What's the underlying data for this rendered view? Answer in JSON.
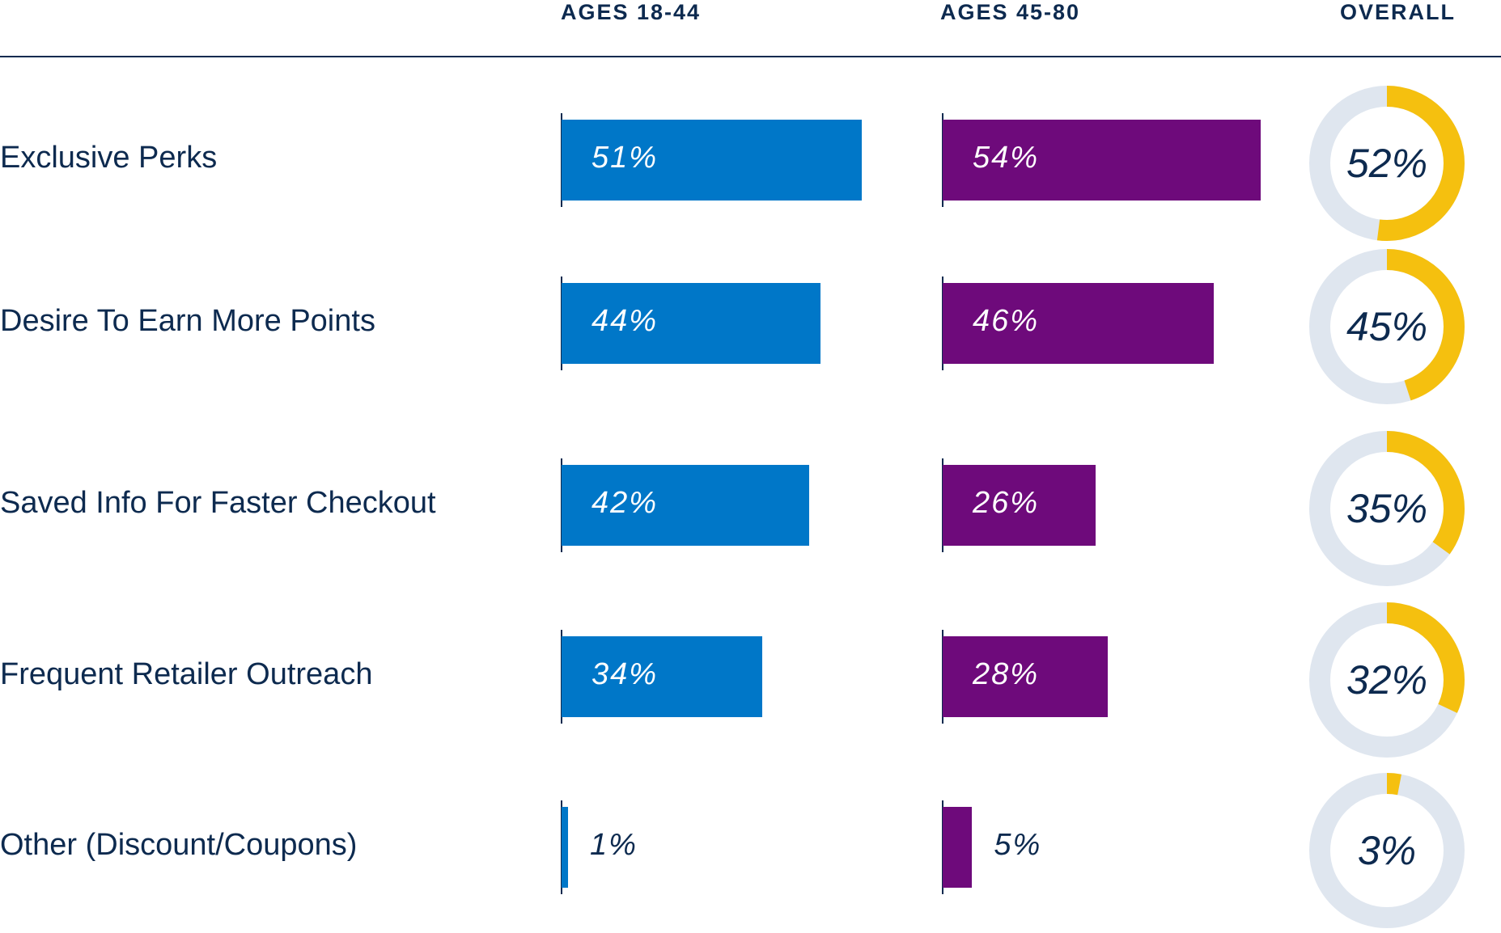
{
  "chart_data": {
    "type": "bar",
    "headers": {
      "young": "AGES 18-44",
      "old": "AGES 45-80",
      "overall": "OVERALL"
    },
    "categories": [
      "Exclusive Perks",
      "Desire To Earn More Points",
      "Saved Info For Faster Checkout",
      "Frequent Retailer Outreach",
      "Other (Discount/Coupons)"
    ],
    "series": [
      {
        "values": [
          51,
          44,
          42,
          34,
          1
        ],
        "labels": [
          "51%",
          "44%",
          "42%",
          "34%",
          "1%"
        ],
        "color": "#0077c8"
      },
      {
        "values": [
          54,
          46,
          26,
          28,
          5
        ],
        "labels": [
          "54%",
          "46%",
          "26%",
          "28%",
          "5%"
        ],
        "color": "#6e0a7b"
      },
      {
        "values": [
          52,
          45,
          35,
          32,
          3
        ],
        "labels": [
          "52%",
          "45%",
          "35%",
          "32%",
          "3%"
        ],
        "color": "#f5c00f",
        "track_color": "#dfe6ef"
      }
    ],
    "ylim": [
      0,
      100
    ],
    "label_color": "#0d2a4f",
    "inside_label_color": "#ffffff",
    "grid": false,
    "legend": "none"
  }
}
